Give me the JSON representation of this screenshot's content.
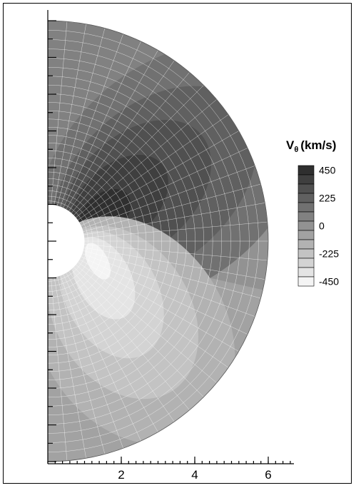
{
  "chart_data": {
    "type": "heatmap",
    "description_type": "contour",
    "xlim": [
      0,
      6.7
    ],
    "x_ticks": [
      {
        "value": 2,
        "label": "2"
      },
      {
        "value": 4,
        "label": "4"
      },
      {
        "value": 6,
        "label": "6"
      }
    ],
    "x_minor_step": 0.2,
    "y_minor_step": 0.5,
    "y_tick_labels_shown": false,
    "domain": {
      "shape": "half-annulus",
      "inner_radius": 1,
      "outer_radius": 6
    },
    "colorbar": {
      "title_main": "V",
      "title_sub": "θ",
      "title_unit": "(km/s)",
      "levels": [
        450,
        375,
        300,
        225,
        150,
        75,
        0,
        -75,
        -150,
        -225,
        -300,
        -375,
        -450
      ],
      "labeled_levels": [
        {
          "value": 450,
          "label": "450"
        },
        {
          "value": 225,
          "label": "225"
        },
        {
          "value": 0,
          "label": "0"
        },
        {
          "value": -225,
          "label": "-225"
        },
        {
          "value": -450,
          "label": "-450"
        }
      ],
      "color_max": "#2f2f2f",
      "color_min": "#f4f4f4"
    },
    "regions": [
      {
        "name": "background",
        "value": 75
      },
      {
        "name": "outer-upper",
        "value": 150
      },
      {
        "name": "upper-lobe-1",
        "value": 225
      },
      {
        "name": "upper-lobe-2",
        "value": 300
      },
      {
        "name": "upper-lobe-3",
        "value": 375
      },
      {
        "name": "upper-core",
        "value": 450
      },
      {
        "name": "equator-band",
        "value": 0
      },
      {
        "name": "lower-outer",
        "value": -75
      },
      {
        "name": "lower-lobe-1",
        "value": -150
      },
      {
        "name": "lower-lobe-2",
        "value": -225
      },
      {
        "name": "lower-lobe-3",
        "value": -300
      },
      {
        "name": "lower-lobe-4",
        "value": -375
      },
      {
        "name": "lower-core",
        "value": -450
      }
    ]
  }
}
